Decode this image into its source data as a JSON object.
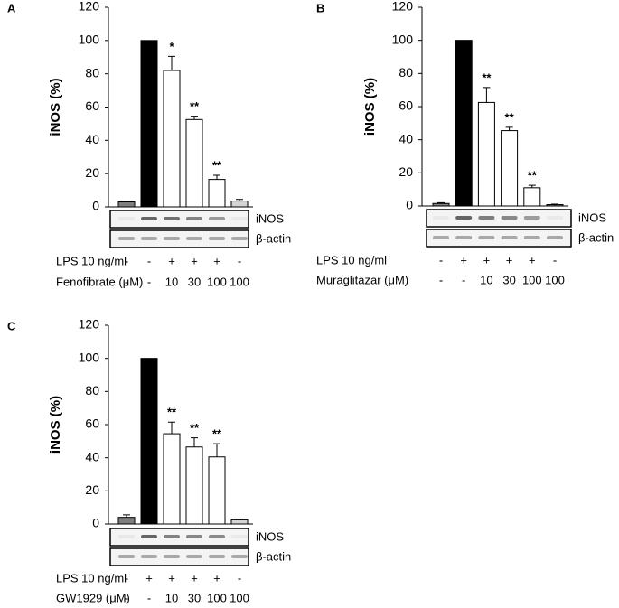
{
  "chart_data": [
    {
      "type": "bar",
      "panel": "A",
      "y_label": "iNOS (%)",
      "categories": [
        null,
        null,
        null,
        null,
        null,
        null
      ],
      "values": [
        3,
        100,
        82,
        52.5,
        16.5,
        3.5
      ],
      "errors": [
        0.5,
        0,
        8.5,
        2,
        2.5,
        1
      ],
      "colors": [
        "#7f7f7f",
        "#000000",
        "#ffffff",
        "#ffffff",
        "#ffffff",
        "#d4d4d4"
      ],
      "significance": [
        null,
        null,
        "*",
        "**",
        "**",
        null
      ],
      "ylim": [
        0,
        120
      ],
      "yticks": [
        0,
        20,
        40,
        60,
        80,
        100,
        120
      ],
      "blot_labels": [
        "iNOS",
        "β-actin"
      ],
      "rows": [
        {
          "label": "LPS 10 ng/ml",
          "values": [
            "-",
            "-",
            "+",
            "+",
            "+",
            "-"
          ]
        },
        {
          "label": "Fenofibrate (μM)",
          "values": [
            "-",
            "-",
            "10",
            "30",
            "100",
            "100"
          ]
        }
      ]
    },
    {
      "type": "bar",
      "panel": "B",
      "y_label": "iNOS (%)",
      "categories": [
        null,
        null,
        null,
        null,
        null,
        null
      ],
      "values": [
        1.5,
        100,
        62.5,
        45.5,
        11,
        0.8
      ],
      "errors": [
        0.5,
        0,
        9,
        2,
        1.5,
        0.3
      ],
      "colors": [
        "#7f7f7f",
        "#000000",
        "#ffffff",
        "#ffffff",
        "#ffffff",
        "#7f7f7f"
      ],
      "significance": [
        null,
        null,
        "**",
        "**",
        "**",
        null
      ],
      "ylim": [
        0,
        120
      ],
      "yticks": [
        0,
        20,
        40,
        60,
        80,
        100,
        120
      ],
      "blot_labels": [
        "iNOS",
        "β-actin"
      ],
      "rows": [
        {
          "label": "LPS 10 ng/ml",
          "values": [
            "-",
            "+",
            "+",
            "+",
            "+",
            "-"
          ]
        },
        {
          "label": "Muraglitazar (μM)",
          "values": [
            "-",
            "-",
            "10",
            "30",
            "100",
            "100"
          ]
        }
      ]
    },
    {
      "type": "bar",
      "panel": "C",
      "y_label": "iNOS (%)",
      "categories": [
        null,
        null,
        null,
        null,
        null,
        null
      ],
      "values": [
        4,
        100,
        54.5,
        46.5,
        40.5,
        2.5
      ],
      "errors": [
        1.5,
        0,
        7,
        5.5,
        8,
        0.3
      ],
      "colors": [
        "#7f7f7f",
        "#000000",
        "#ffffff",
        "#ffffff",
        "#ffffff",
        "#d4d4d4"
      ],
      "significance": [
        null,
        null,
        "**",
        "**",
        "**",
        null
      ],
      "ylim": [
        0,
        120
      ],
      "yticks": [
        0,
        20,
        40,
        60,
        80,
        100,
        120
      ],
      "blot_labels": [
        "iNOS",
        "β-actin"
      ],
      "rows": [
        {
          "label": "LPS 10 ng/ml",
          "values": [
            "-",
            "+",
            "+",
            "+",
            "+",
            "-"
          ]
        },
        {
          "label": "GW1929 (μM)",
          "values": [
            "-",
            "-",
            "10",
            "30",
            "100",
            "100"
          ]
        }
      ]
    }
  ]
}
